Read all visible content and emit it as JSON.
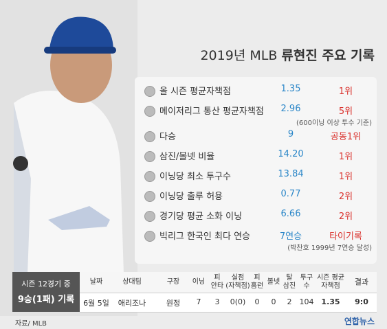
{
  "header": {
    "title_prefix": "2019년 MLB",
    "title_main": "류현진 주요 기록"
  },
  "records": [
    {
      "label": "올 시즌 평균자책점",
      "value": "1.35",
      "rank": "1위"
    },
    {
      "label": "메이저리그 통산 평균자책점",
      "value": "2.96",
      "rank": "5위",
      "note": "(600이닝 이상 투수 기준)"
    },
    {
      "label": "다승",
      "value": "9",
      "rank": "공동1위"
    },
    {
      "label": "삼진/볼넷 비율",
      "value": "14.20",
      "rank": "1위"
    },
    {
      "label": "이닝당 최소 투구수",
      "value": "13.84",
      "rank": "1위"
    },
    {
      "label": "이닝당 출루 허용",
      "value": "0.77",
      "rank": "2위"
    },
    {
      "label": "경기당 평균 소화 이닝",
      "value": "6.66",
      "rank": "2위"
    },
    {
      "label": "빅리그 한국인 최다 연승",
      "value": "7연승",
      "rank": "타이기록",
      "note": "(박찬호 1999년 7연승 달성)"
    }
  ],
  "game": {
    "summary_line1": "시즌 12경기 중",
    "summary_line2": "9승(1패) 기록",
    "headers": [
      [
        "날짜"
      ],
      [
        "상대팀"
      ],
      [
        "구장"
      ],
      [
        "이닝"
      ],
      [
        "피",
        "안타"
      ],
      [
        "실점",
        "(자책점)"
      ],
      [
        "피",
        "홈런"
      ],
      [
        "볼넷"
      ],
      [
        "탈",
        "삼진"
      ],
      [
        "투구",
        "수"
      ],
      [
        "시즌 평균",
        "자책점"
      ],
      [
        "결과"
      ]
    ],
    "row": [
      "6월 5일",
      "애리조나",
      "원정",
      "7",
      "3",
      "0(0)",
      "0",
      "0",
      "2",
      "104",
      "1.35",
      "9:0"
    ]
  },
  "footer": {
    "source": "자료/ MLB",
    "logo": "연합뉴스"
  }
}
